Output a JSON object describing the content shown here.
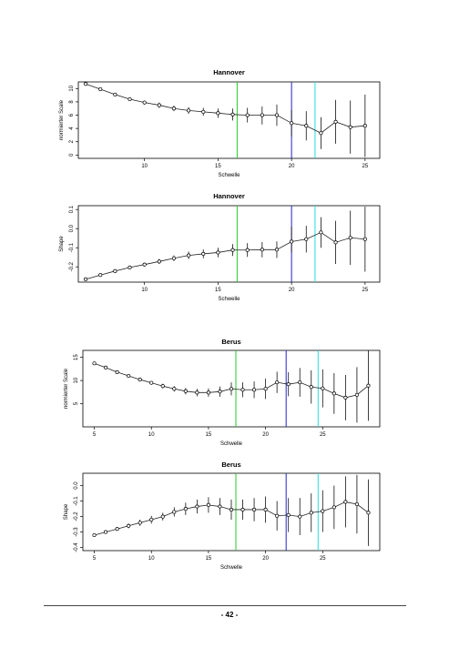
{
  "page": {
    "number": "- 42 -"
  },
  "colors": {
    "vline_green": "#22cc22",
    "vline_blue": "#2222cc",
    "vline_cyan": "#22dddd",
    "series": "#222222",
    "errorbar": "#111111"
  },
  "chart_data": [
    {
      "type": "line",
      "title": "Hannover",
      "xlabel": "Schwelle",
      "ylabel": "normierter Scale",
      "xlim": [
        5.5,
        26
      ],
      "ylim": [
        -0.5,
        11
      ],
      "xticks": [
        "10",
        "15",
        "20",
        "25"
      ],
      "yticks": [
        "0",
        "2",
        "4",
        "6",
        "8",
        "10"
      ],
      "vlines": [
        {
          "x": 16.3,
          "color": "green"
        },
        {
          "x": 20.0,
          "color": "blue"
        },
        {
          "x": 21.6,
          "color": "cyan"
        }
      ],
      "series": [
        {
          "x": [
            6,
            7,
            8,
            9,
            10,
            11,
            12,
            13,
            14,
            15,
            16,
            17,
            18,
            19,
            20,
            21,
            22,
            23,
            24,
            25
          ],
          "values": [
            10.7,
            9.9,
            9.1,
            8.4,
            7.9,
            7.5,
            7.0,
            6.7,
            6.5,
            6.3,
            6.1,
            6.0,
            6.0,
            6.0,
            4.8,
            4.4,
            3.3,
            5.0,
            4.2,
            4.4
          ],
          "lower": [
            10.5,
            9.7,
            8.85,
            8.15,
            7.6,
            7.1,
            6.6,
            6.2,
            5.9,
            5.6,
            5.2,
            4.9,
            4.6,
            4.4,
            2.8,
            2.2,
            0.9,
            1.7,
            0.2,
            -0.3
          ],
          "upper": [
            10.9,
            10.1,
            9.35,
            8.65,
            8.2,
            7.9,
            7.4,
            7.2,
            7.1,
            7.0,
            7.0,
            7.1,
            7.3,
            7.6,
            6.8,
            6.6,
            5.7,
            8.3,
            8.2,
            9.1
          ]
        }
      ]
    },
    {
      "type": "line",
      "title": "Hannover",
      "xlabel": "Schwelle",
      "ylabel": "Shape",
      "xlim": [
        5.5,
        26
      ],
      "ylim": [
        -0.28,
        0.12
      ],
      "xticks": [
        "10",
        "15",
        "20",
        "25"
      ],
      "yticks": [
        "-0.2",
        "-0.1",
        "0.0",
        "0.1"
      ],
      "vlines": [
        {
          "x": 16.3,
          "color": "green"
        },
        {
          "x": 20.0,
          "color": "blue"
        },
        {
          "x": 21.6,
          "color": "cyan"
        }
      ],
      "series": [
        {
          "x": [
            6,
            7,
            8,
            9,
            10,
            11,
            12,
            13,
            14,
            15,
            16,
            17,
            18,
            19,
            20,
            21,
            22,
            23,
            24,
            25
          ],
          "values": [
            -0.265,
            -0.243,
            -0.222,
            -0.203,
            -0.188,
            -0.172,
            -0.155,
            -0.14,
            -0.132,
            -0.125,
            -0.112,
            -0.112,
            -0.11,
            -0.11,
            -0.068,
            -0.055,
            -0.02,
            -0.072,
            -0.048,
            -0.055
          ],
          "lower": [
            -0.27,
            -0.25,
            -0.23,
            -0.212,
            -0.198,
            -0.185,
            -0.17,
            -0.16,
            -0.155,
            -0.15,
            -0.143,
            -0.148,
            -0.15,
            -0.153,
            -0.125,
            -0.125,
            -0.1,
            -0.185,
            -0.19,
            -0.225
          ],
          "upper": [
            -0.26,
            -0.236,
            -0.214,
            -0.194,
            -0.178,
            -0.159,
            -0.14,
            -0.12,
            -0.109,
            -0.1,
            -0.081,
            -0.076,
            -0.07,
            -0.067,
            0.011,
            0.015,
            0.06,
            0.041,
            0.094,
            0.115
          ]
        }
      ]
    },
    {
      "type": "line",
      "title": "Berus",
      "xlabel": "Schwelle",
      "ylabel": "normierter Scale",
      "xlim": [
        4,
        30
      ],
      "ylim": [
        0,
        16.5
      ],
      "xticks": [
        "5",
        "10",
        "15",
        "20",
        "25"
      ],
      "yticks": [
        "5",
        "10",
        "15"
      ],
      "vlines": [
        {
          "x": 17.4,
          "color": "green"
        },
        {
          "x": 21.8,
          "color": "blue"
        },
        {
          "x": 24.6,
          "color": "cyan"
        }
      ],
      "series": [
        {
          "x": [
            5,
            6,
            7,
            8,
            9,
            10,
            11,
            12,
            13,
            14,
            15,
            16,
            17,
            18,
            19,
            20,
            21,
            22,
            23,
            24,
            25,
            26,
            27,
            28,
            29
          ],
          "values": [
            13.7,
            12.8,
            11.8,
            11.0,
            10.2,
            9.5,
            8.8,
            8.2,
            7.7,
            7.4,
            7.4,
            7.6,
            8.2,
            8.0,
            8.0,
            8.2,
            9.6,
            9.2,
            9.6,
            8.6,
            8.3,
            7.2,
            6.3,
            6.9,
            8.9
          ],
          "lower": [
            13.4,
            12.5,
            11.5,
            10.6,
            9.8,
            9.1,
            8.3,
            7.6,
            7.0,
            6.6,
            6.5,
            6.5,
            6.8,
            6.4,
            6.2,
            6.0,
            7.3,
            6.6,
            6.5,
            5.0,
            4.2,
            2.8,
            1.4,
            0.9,
            1.3
          ],
          "upper": [
            14.0,
            13.1,
            12.1,
            11.4,
            10.6,
            9.9,
            9.3,
            8.8,
            8.4,
            8.2,
            8.3,
            8.7,
            9.6,
            9.6,
            9.8,
            10.4,
            11.9,
            11.8,
            12.7,
            12.2,
            12.4,
            11.6,
            11.2,
            12.9,
            16.5
          ]
        }
      ]
    },
    {
      "type": "line",
      "title": "Berus",
      "xlabel": "Schwelle",
      "ylabel": "Shape",
      "xlim": [
        4,
        30
      ],
      "ylim": [
        -0.42,
        0.08
      ],
      "xticks": [
        "5",
        "10",
        "15",
        "20",
        "25"
      ],
      "yticks": [
        "-0.4",
        "-0.3",
        "-0.2",
        "-0.1",
        "0.0"
      ],
      "vlines": [
        {
          "x": 17.4,
          "color": "green"
        },
        {
          "x": 21.8,
          "color": "blue"
        },
        {
          "x": 24.6,
          "color": "cyan"
        }
      ],
      "series": [
        {
          "x": [
            5,
            6,
            7,
            8,
            9,
            10,
            11,
            12,
            13,
            14,
            15,
            16,
            17,
            18,
            19,
            20,
            21,
            22,
            23,
            24,
            25,
            26,
            27,
            28,
            29
          ],
          "values": [
            -0.32,
            -0.3,
            -0.28,
            -0.26,
            -0.24,
            -0.22,
            -0.2,
            -0.17,
            -0.15,
            -0.135,
            -0.125,
            -0.135,
            -0.155,
            -0.155,
            -0.155,
            -0.155,
            -0.195,
            -0.19,
            -0.2,
            -0.175,
            -0.165,
            -0.14,
            -0.105,
            -0.12,
            -0.175
          ],
          "lower": [
            -0.33,
            -0.31,
            -0.29,
            -0.275,
            -0.26,
            -0.245,
            -0.225,
            -0.2,
            -0.19,
            -0.18,
            -0.175,
            -0.19,
            -0.22,
            -0.22,
            -0.23,
            -0.24,
            -0.29,
            -0.3,
            -0.32,
            -0.3,
            -0.3,
            -0.28,
            -0.27,
            -0.31,
            -0.39
          ],
          "upper": [
            -0.31,
            -0.29,
            -0.27,
            -0.245,
            -0.22,
            -0.195,
            -0.175,
            -0.14,
            -0.11,
            -0.09,
            -0.075,
            -0.08,
            -0.09,
            -0.09,
            -0.08,
            -0.07,
            -0.1,
            -0.08,
            -0.08,
            -0.05,
            -0.03,
            0.0,
            0.06,
            0.07,
            0.04
          ]
        }
      ]
    }
  ]
}
